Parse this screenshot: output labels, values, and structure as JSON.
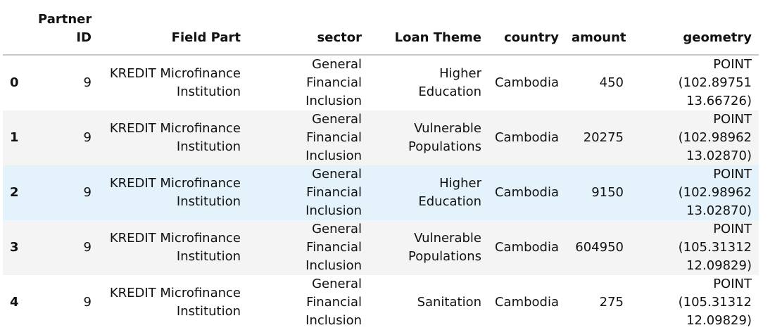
{
  "table": {
    "columns": [
      "Partner\nID",
      "Field Part",
      "sector",
      "Loan Theme",
      "country",
      "amount",
      "geometry"
    ],
    "rows": [
      {
        "index": "0",
        "partner_id": "9",
        "field_part": [
          "KREDIT Microfinance",
          "Institution"
        ],
        "sector": [
          "General Financial",
          "Inclusion"
        ],
        "loan_theme": [
          "Higher",
          "Education"
        ],
        "country": "Cambodia",
        "amount": "450",
        "geometry": [
          "POINT (102.89751",
          "13.66726)"
        ]
      },
      {
        "index": "1",
        "partner_id": "9",
        "field_part": [
          "KREDIT Microfinance",
          "Institution"
        ],
        "sector": [
          "General Financial",
          "Inclusion"
        ],
        "loan_theme": [
          "Vulnerable",
          "Populations"
        ],
        "country": "Cambodia",
        "amount": "20275",
        "geometry": [
          "POINT (102.98962",
          "13.02870)"
        ]
      },
      {
        "index": "2",
        "partner_id": "9",
        "field_part": [
          "KREDIT Microfinance",
          "Institution"
        ],
        "sector": [
          "General Financial",
          "Inclusion"
        ],
        "loan_theme": [
          "Higher",
          "Education"
        ],
        "country": "Cambodia",
        "amount": "9150",
        "geometry": [
          "POINT (102.98962",
          "13.02870)"
        ]
      },
      {
        "index": "3",
        "partner_id": "9",
        "field_part": [
          "KREDIT Microfinance",
          "Institution"
        ],
        "sector": [
          "General Financial",
          "Inclusion"
        ],
        "loan_theme": [
          "Vulnerable",
          "Populations"
        ],
        "country": "Cambodia",
        "amount": "604950",
        "geometry": [
          "POINT (105.31312",
          "12.09829)"
        ]
      },
      {
        "index": "4",
        "partner_id": "9",
        "field_part": [
          "KREDIT Microfinance",
          "Institution"
        ],
        "sector": [
          "General Financial",
          "Inclusion"
        ],
        "loan_theme": [
          "Sanitation"
        ],
        "country": "Cambodia",
        "amount": "275",
        "geometry": [
          "POINT (105.31312",
          "12.09829)"
        ]
      }
    ],
    "hover_row": 2,
    "colors": {
      "stripe": "#f4f4f4",
      "hover": "#e3f2fb",
      "header_rule": "#c8c8c8"
    }
  }
}
